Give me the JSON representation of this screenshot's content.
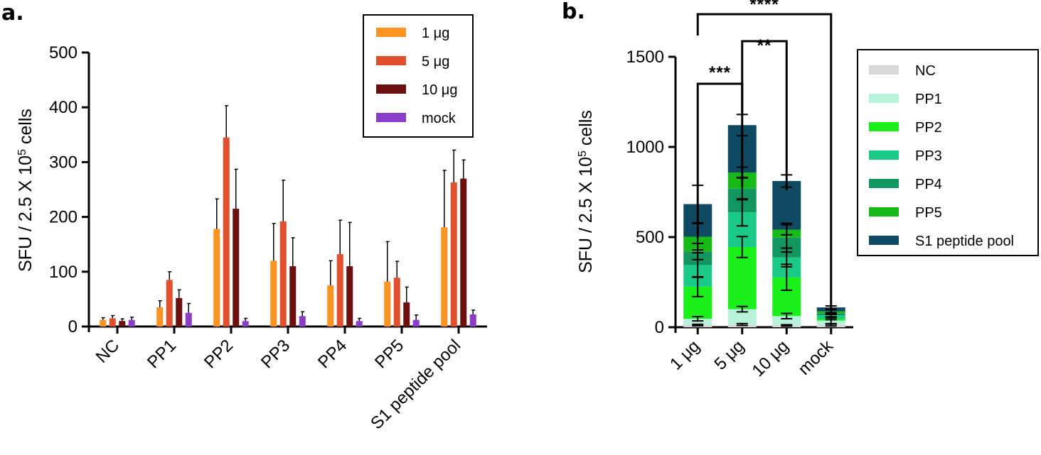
{
  "panel_a": {
    "label": "a.",
    "colors": [
      "#FF9422",
      "#E0502C",
      "#6B0F0F",
      "#8B3CC8"
    ]
  },
  "panel_b": {
    "label": "b.",
    "colors": [
      "#D8D8D8",
      "#B8F2DC",
      "#1AF01A",
      "#1ACB88",
      "#12955E",
      "#17BB17",
      "#0E4B63"
    ],
    "significance": [
      "***",
      "**",
      "****"
    ]
  },
  "chart_data": [
    {
      "type": "bar",
      "panel": "a.",
      "title": "",
      "xlabel": "",
      "ylabel": "SFU / 2.5 X 10",
      "ylabel_sup": "5",
      "ylabel_suffix": " cells",
      "ylim": [
        0,
        500
      ],
      "yticks": [
        "0",
        "100",
        "200",
        "300",
        "400",
        "500"
      ],
      "legend_position": "top-right",
      "categories": [
        "NC",
        "PP1",
        "PP2",
        "PP3",
        "PP4",
        "PP5",
        "S1 peptide pool"
      ],
      "series": [
        {
          "name": "1 μg",
          "values": [
            12,
            35,
            178,
            120,
            75,
            82,
            181
          ],
          "errors": [
            4,
            12,
            55,
            68,
            45,
            73,
            104
          ]
        },
        {
          "name": "5 μg",
          "values": [
            15,
            85,
            345,
            192,
            132,
            89,
            263
          ],
          "errors": [
            5,
            15,
            58,
            75,
            62,
            30,
            59
          ]
        },
        {
          "name": "10 μg",
          "values": [
            10,
            52,
            215,
            110,
            110,
            44,
            270
          ],
          "errors": [
            4,
            15,
            72,
            52,
            80,
            28,
            34
          ]
        },
        {
          "name": "mock",
          "values": [
            12,
            25,
            10,
            19,
            10,
            12,
            22
          ],
          "errors": [
            5,
            17,
            5,
            8,
            5,
            9,
            8
          ]
        }
      ]
    },
    {
      "type": "bar",
      "stacked": true,
      "panel": "b.",
      "title": "",
      "xlabel": "",
      "ylabel": "SFU / 2.5 X 10",
      "ylabel_sup": "5",
      "ylabel_suffix": " cells",
      "ylim": [
        0,
        1500
      ],
      "yticks": [
        "0",
        "500",
        "1000",
        "1500"
      ],
      "legend_position": "right",
      "categories": [
        "1 μg",
        "5 μg",
        "10 μg",
        "mock"
      ],
      "series": [
        {
          "name": "NC",
          "values": [
            12,
            15,
            10,
            12
          ]
        },
        {
          "name": "PP1",
          "values": [
            35,
            85,
            52,
            25
          ]
        },
        {
          "name": "PP2",
          "values": [
            178,
            345,
            215,
            10
          ]
        },
        {
          "name": "PP3",
          "values": [
            120,
            192,
            110,
            19
          ]
        },
        {
          "name": "PP4",
          "values": [
            75,
            132,
            110,
            10
          ]
        },
        {
          "name": "PP5",
          "values": [
            82,
            89,
            44,
            12
          ]
        },
        {
          "name": "S1 peptide pool",
          "values": [
            181,
            263,
            270,
            22
          ]
        }
      ],
      "errors": [
        [
          4,
          12,
          55,
          68,
          45,
          73,
          104
        ],
        [
          5,
          15,
          58,
          75,
          62,
          30,
          59
        ],
        [
          4,
          15,
          72,
          52,
          80,
          28,
          34
        ],
        [
          5,
          17,
          5,
          8,
          5,
          9,
          8
        ]
      ],
      "significance": [
        {
          "from": "1 μg",
          "to": "5 μg",
          "label": "***"
        },
        {
          "from": "5 μg",
          "to": "10 μg",
          "label": "**"
        },
        {
          "from": "1 μg",
          "to": "mock",
          "label": "****"
        }
      ]
    }
  ]
}
